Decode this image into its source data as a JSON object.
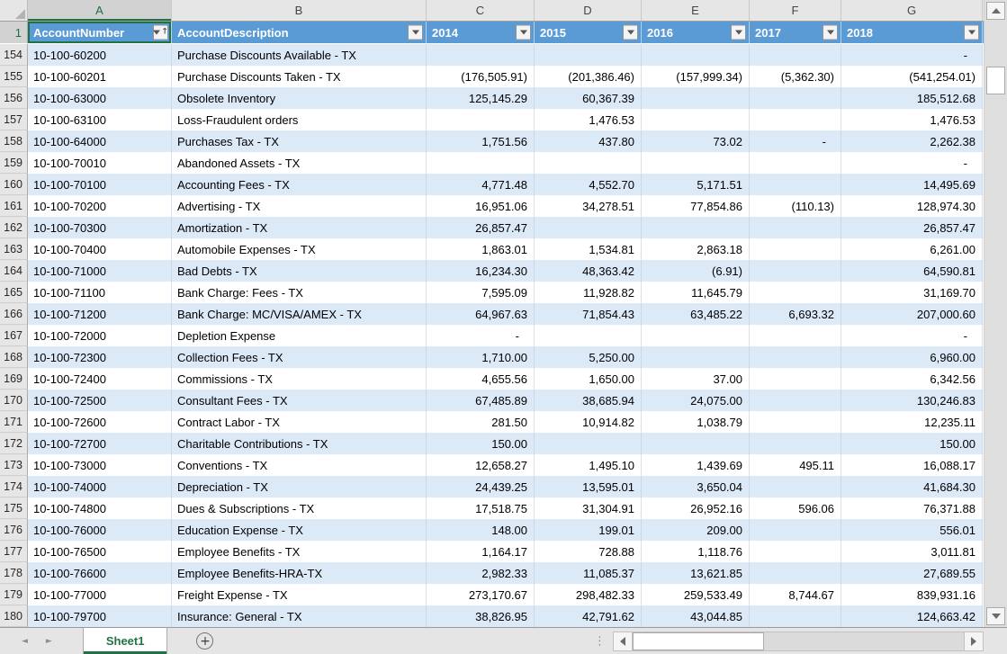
{
  "colors": {
    "header_fill": "#5B9BD5",
    "band_fill": "#DCE9F6",
    "selection_green": "#217346",
    "tab_text_green": "#217346",
    "header_strip_gray": "#E6E6E6"
  },
  "columns": {
    "letters": [
      "A",
      "B",
      "C",
      "D",
      "E",
      "F",
      "G"
    ],
    "active_letter": "A"
  },
  "selection": {
    "active_cell": "A1",
    "active_column": "A",
    "active_row": "1"
  },
  "header": {
    "row_number": "1",
    "cells": [
      {
        "label": "AccountNumber",
        "filter_icon": "filter-sort-asc-icon",
        "sorted": "ascending"
      },
      {
        "label": "AccountDescription",
        "filter_icon": "filter-dropdown-icon"
      },
      {
        "label": "2014",
        "filter_icon": "filter-dropdown-icon"
      },
      {
        "label": "2015",
        "filter_icon": "filter-dropdown-icon"
      },
      {
        "label": "2016",
        "filter_icon": "filter-dropdown-icon"
      },
      {
        "label": "2017",
        "filter_icon": "filter-dropdown-icon"
      },
      {
        "label": "2018",
        "filter_icon": "filter-dropdown-icon"
      }
    ]
  },
  "rows": [
    {
      "n": "154",
      "account": "10-100-60200",
      "desc": "Purchase Discounts Available - TX",
      "v2014": "",
      "v2015": "",
      "v2016": "",
      "v2017": "",
      "v2018": "-"
    },
    {
      "n": "155",
      "account": "10-100-60201",
      "desc": "Purchase Discounts Taken - TX",
      "v2014": "(176,505.91)",
      "v2015": "(201,386.46)",
      "v2016": "(157,999.34)",
      "v2017": "(5,362.30)",
      "v2018": "(541,254.01)"
    },
    {
      "n": "156",
      "account": "10-100-63000",
      "desc": "Obsolete Inventory",
      "v2014": "125,145.29",
      "v2015": "60,367.39",
      "v2016": "",
      "v2017": "",
      "v2018": "185,512.68"
    },
    {
      "n": "157",
      "account": "10-100-63100",
      "desc": "Loss-Fraudulent orders",
      "v2014": "",
      "v2015": "1,476.53",
      "v2016": "",
      "v2017": "",
      "v2018": "1,476.53"
    },
    {
      "n": "158",
      "account": "10-100-64000",
      "desc": "Purchases Tax - TX",
      "v2014": "1,751.56",
      "v2015": "437.80",
      "v2016": "73.02",
      "v2017": "-",
      "v2018": "2,262.38"
    },
    {
      "n": "159",
      "account": "10-100-70010",
      "desc": "Abandoned Assets - TX",
      "v2014": "",
      "v2015": "",
      "v2016": "",
      "v2017": "",
      "v2018": "-"
    },
    {
      "n": "160",
      "account": "10-100-70100",
      "desc": "Accounting Fees - TX",
      "v2014": "4,771.48",
      "v2015": "4,552.70",
      "v2016": "5,171.51",
      "v2017": "",
      "v2018": "14,495.69"
    },
    {
      "n": "161",
      "account": "10-100-70200",
      "desc": "Advertising - TX",
      "v2014": "16,951.06",
      "v2015": "34,278.51",
      "v2016": "77,854.86",
      "v2017": "(110.13)",
      "v2018": "128,974.30"
    },
    {
      "n": "162",
      "account": "10-100-70300",
      "desc": "Amortization - TX",
      "v2014": "26,857.47",
      "v2015": "",
      "v2016": "",
      "v2017": "",
      "v2018": "26,857.47"
    },
    {
      "n": "163",
      "account": "10-100-70400",
      "desc": "Automobile Expenses - TX",
      "v2014": "1,863.01",
      "v2015": "1,534.81",
      "v2016": "2,863.18",
      "v2017": "",
      "v2018": "6,261.00"
    },
    {
      "n": "164",
      "account": "10-100-71000",
      "desc": "Bad Debts - TX",
      "v2014": "16,234.30",
      "v2015": "48,363.42",
      "v2016": "(6.91)",
      "v2017": "",
      "v2018": "64,590.81"
    },
    {
      "n": "165",
      "account": "10-100-71100",
      "desc": "Bank Charge: Fees - TX",
      "v2014": "7,595.09",
      "v2015": "11,928.82",
      "v2016": "11,645.79",
      "v2017": "",
      "v2018": "31,169.70"
    },
    {
      "n": "166",
      "account": "10-100-71200",
      "desc": "Bank Charge: MC/VISA/AMEX - TX",
      "v2014": "64,967.63",
      "v2015": "71,854.43",
      "v2016": "63,485.22",
      "v2017": "6,693.32",
      "v2018": "207,000.60"
    },
    {
      "n": "167",
      "account": "10-100-72000",
      "desc": "Depletion Expense",
      "v2014": "-",
      "v2015": "",
      "v2016": "",
      "v2017": "",
      "v2018": "-"
    },
    {
      "n": "168",
      "account": "10-100-72300",
      "desc": "Collection Fees - TX",
      "v2014": "1,710.00",
      "v2015": "5,250.00",
      "v2016": "",
      "v2017": "",
      "v2018": "6,960.00"
    },
    {
      "n": "169",
      "account": "10-100-72400",
      "desc": "Commissions - TX",
      "v2014": "4,655.56",
      "v2015": "1,650.00",
      "v2016": "37.00",
      "v2017": "",
      "v2018": "6,342.56"
    },
    {
      "n": "170",
      "account": "10-100-72500",
      "desc": "Consultant Fees - TX",
      "v2014": "67,485.89",
      "v2015": "38,685.94",
      "v2016": "24,075.00",
      "v2017": "",
      "v2018": "130,246.83"
    },
    {
      "n": "171",
      "account": "10-100-72600",
      "desc": "Contract Labor - TX",
      "v2014": "281.50",
      "v2015": "10,914.82",
      "v2016": "1,038.79",
      "v2017": "",
      "v2018": "12,235.11"
    },
    {
      "n": "172",
      "account": "10-100-72700",
      "desc": "Charitable Contributions - TX",
      "v2014": "150.00",
      "v2015": "",
      "v2016": "",
      "v2017": "",
      "v2018": "150.00"
    },
    {
      "n": "173",
      "account": "10-100-73000",
      "desc": "Conventions - TX",
      "v2014": "12,658.27",
      "v2015": "1,495.10",
      "v2016": "1,439.69",
      "v2017": "495.11",
      "v2018": "16,088.17"
    },
    {
      "n": "174",
      "account": "10-100-74000",
      "desc": "Depreciation - TX",
      "v2014": "24,439.25",
      "v2015": "13,595.01",
      "v2016": "3,650.04",
      "v2017": "",
      "v2018": "41,684.30"
    },
    {
      "n": "175",
      "account": "10-100-74800",
      "desc": "Dues & Subscriptions - TX",
      "v2014": "17,518.75",
      "v2015": "31,304.91",
      "v2016": "26,952.16",
      "v2017": "596.06",
      "v2018": "76,371.88"
    },
    {
      "n": "176",
      "account": "10-100-76000",
      "desc": "Education Expense - TX",
      "v2014": "148.00",
      "v2015": "199.01",
      "v2016": "209.00",
      "v2017": "",
      "v2018": "556.01"
    },
    {
      "n": "177",
      "account": "10-100-76500",
      "desc": "Employee Benefits - TX",
      "v2014": "1,164.17",
      "v2015": "728.88",
      "v2016": "1,118.76",
      "v2017": "",
      "v2018": "3,011.81"
    },
    {
      "n": "178",
      "account": "10-100-76600",
      "desc": "Employee Benefits-HRA-TX",
      "v2014": "2,982.33",
      "v2015": "11,085.37",
      "v2016": "13,621.85",
      "v2017": "",
      "v2018": "27,689.55"
    },
    {
      "n": "179",
      "account": "10-100-77000",
      "desc": "Freight Expense - TX",
      "v2014": "273,170.67",
      "v2015": "298,482.33",
      "v2016": "259,533.49",
      "v2017": "8,744.67",
      "v2018": "839,931.16"
    },
    {
      "n": "180",
      "account": "10-100-79700",
      "desc": "Insurance: General - TX",
      "v2014": "38,826.95",
      "v2015": "42,791.62",
      "v2016": "43,044.85",
      "v2017": "",
      "v2018": "124,663.42"
    }
  ],
  "tabbar": {
    "active_tab": "Sheet1",
    "new_sheet_glyph": "+",
    "nav_prev_glyph": "◄",
    "nav_next_glyph": "►",
    "grip_glyph": "⋮"
  }
}
